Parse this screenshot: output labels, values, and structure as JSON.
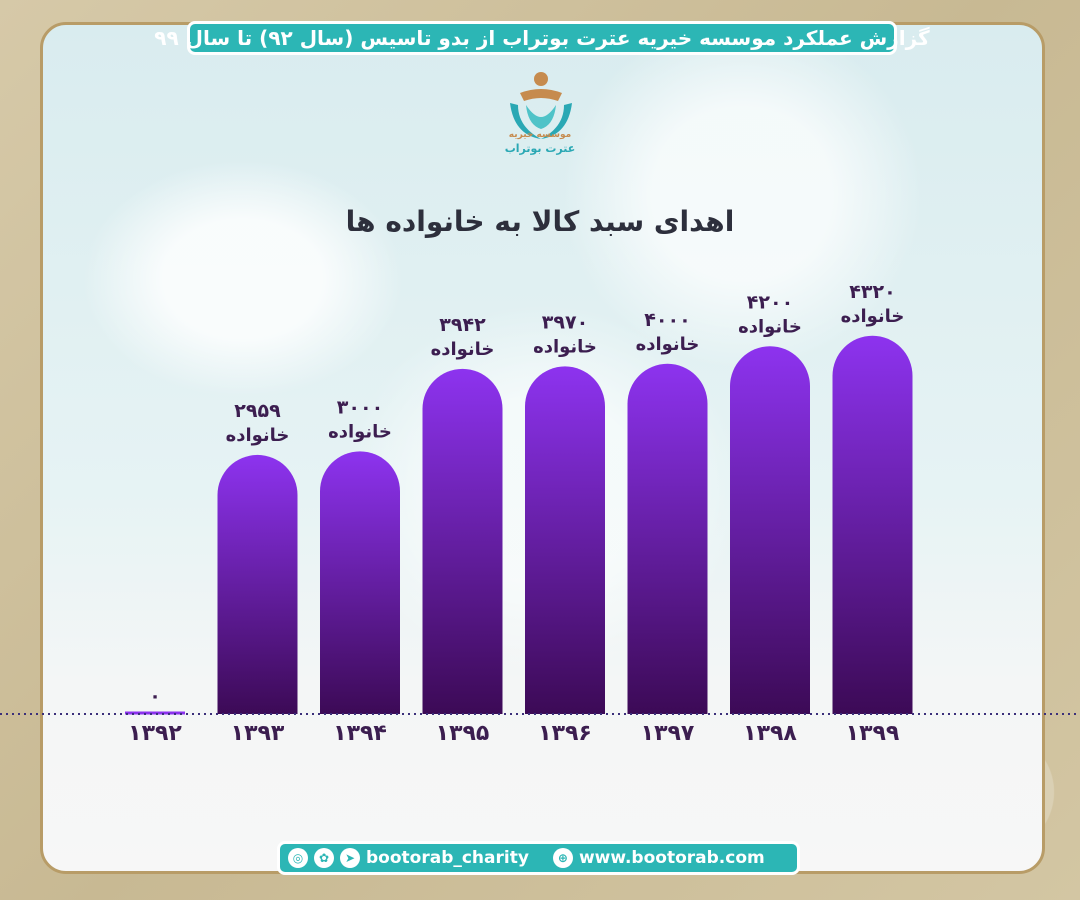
{
  "header": {
    "banner_text": "گزارش عملکرد موسسه خیریه عترت بوتراب از بدو تاسیس (سال ۹۲) تا سال ۹۹"
  },
  "logo": {
    "line1": "موسسه خیریه",
    "line2": "عترت بوتراب",
    "icon": "charity-hands-logo"
  },
  "chart_data": {
    "type": "bar",
    "title": "اهدای سبد کالا به خانواده ها",
    "categories": [
      "۱۳۹۲",
      "۱۳۹۳",
      "۱۳۹۴",
      "۱۳۹۵",
      "۱۳۹۶",
      "۱۳۹۷",
      "۱۳۹۸",
      "۱۳۹۹"
    ],
    "values": [
      0,
      2959,
      3000,
      3942,
      3970,
      4000,
      4200,
      4320
    ],
    "value_labels": [
      "۰",
      "۲۹۵۹",
      "۳۰۰۰",
      "۳۹۴۲",
      "۳۹۷۰",
      "۴۰۰۰",
      "۴۲۰۰",
      "۴۳۲۰"
    ],
    "unit_label": "خانواده",
    "ylim": [
      0,
      4500
    ],
    "grid": false,
    "colors": {
      "bar_top": "#8d33ef",
      "bar_bottom": "#3c0a56",
      "label": "#3c1e50",
      "baseline": "#3b2f7a"
    }
  },
  "footer": {
    "social_handle": "bootorab_charity",
    "website": "www.bootorab.com",
    "icons": [
      "instagram-icon",
      "aparat-icon",
      "telegram-icon",
      "globe-icon"
    ]
  }
}
